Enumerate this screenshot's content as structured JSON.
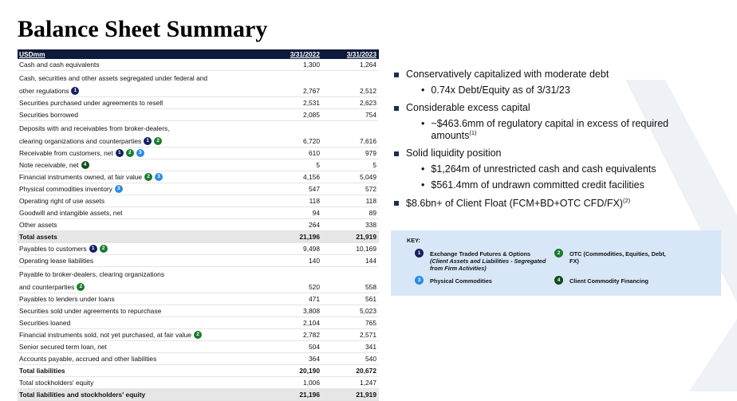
{
  "title": "Balance Sheet Summary",
  "table": {
    "header": [
      "USDmm",
      "3/31/2022",
      "3/31/2023"
    ],
    "rows": [
      {
        "label": [
          "Cash and cash equivalents"
        ],
        "values": [
          "1,300",
          "1,264"
        ]
      },
      {
        "label": [
          "Cash, securities and other assets segregated under federal and",
          "other regulations"
        ],
        "badges": [
          "1"
        ],
        "values": [
          "2,767",
          "2,512"
        ]
      },
      {
        "label": [
          "Securities purchased under agreements to resell"
        ],
        "values": [
          "2,531",
          "2,623"
        ]
      },
      {
        "label": [
          "Securities borrowed"
        ],
        "values": [
          "2,085",
          "754"
        ]
      },
      {
        "label": [
          "Deposits with and receivables from broker-dealers,",
          "clearing organizations and counterparties"
        ],
        "badges": [
          "1",
          "2"
        ],
        "values": [
          "6,720",
          "7,616"
        ]
      },
      {
        "label": [
          "Receivable from customers, net"
        ],
        "badges": [
          "1",
          "2",
          "3"
        ],
        "values": [
          "610",
          "979"
        ]
      },
      {
        "label": [
          "Note receivable, net"
        ],
        "badges": [
          "4"
        ],
        "values": [
          "5",
          "5"
        ]
      },
      {
        "label": [
          "Financial instruments owned, at fair value"
        ],
        "badges": [
          "2",
          "3"
        ],
        "values": [
          "4,156",
          "5,049"
        ]
      },
      {
        "label": [
          "Physical commodities inventory"
        ],
        "badges": [
          "3"
        ],
        "values": [
          "547",
          "572"
        ]
      },
      {
        "label": [
          "Operating right of use assets"
        ],
        "values": [
          "118",
          "118"
        ]
      },
      {
        "label": [
          "Goodwill and intangible assets, net"
        ],
        "values": [
          "94",
          "89"
        ]
      },
      {
        "label": [
          "Other assets"
        ],
        "values": [
          "264",
          "338"
        ]
      },
      {
        "label": [
          "Total assets"
        ],
        "values": [
          "21,196",
          "21,919"
        ],
        "style": "total-shaded"
      },
      {
        "label": [
          "Payables to customers"
        ],
        "badges": [
          "1",
          "2"
        ],
        "values": [
          "9,498",
          "10,169"
        ]
      },
      {
        "label": [
          "Operating lease liabilities"
        ],
        "values": [
          "140",
          "144"
        ]
      },
      {
        "label": [
          "Payable to broker-dealers, clearing organizations",
          "and counterparties"
        ],
        "badges": [
          "2"
        ],
        "values": [
          "520",
          "558"
        ]
      },
      {
        "label": [
          "Payables to lenders under loans"
        ],
        "values": [
          "471",
          "561"
        ]
      },
      {
        "label": [
          "Securities sold under agreements to repurchase"
        ],
        "values": [
          "3,808",
          "5,023"
        ]
      },
      {
        "label": [
          "Securities loaned"
        ],
        "values": [
          "2,104",
          "765"
        ]
      },
      {
        "label": [
          "Financial instruments sold, not yet purchased, at fair value"
        ],
        "badges": [
          "2"
        ],
        "values": [
          "2,782",
          "2,571"
        ]
      },
      {
        "label": [
          "Senior secured term loan, net"
        ],
        "values": [
          "504",
          "341"
        ]
      },
      {
        "label": [
          "Accounts payable, accrued and other liabilities"
        ],
        "values": [
          "364",
          "540"
        ]
      },
      {
        "label": [
          "Total liabilities"
        ],
        "values": [
          "20,190",
          "20,672"
        ],
        "style": "total"
      },
      {
        "label": [
          "Total stockholders' equity"
        ],
        "values": [
          "1,006",
          "1,247"
        ]
      },
      {
        "label": [
          "Total liabilities and stockholders' equity"
        ],
        "values": [
          "21,196",
          "21,919"
        ],
        "style": "total-shaded"
      }
    ]
  },
  "bullets": [
    {
      "text": "Conservatively capitalized with moderate debt",
      "sub": [
        {
          "text": "0.74x Debt/Equity as of 3/31/23"
        }
      ]
    },
    {
      "text": "Considerable excess capital",
      "sub": [
        {
          "text": "~$463.6mm of regulatory capital in excess of required amounts",
          "sup": "(1)"
        }
      ]
    },
    {
      "text": "Solid liquidity position",
      "sub": [
        {
          "text": "$1,264m of unrestricted cash and cash equivalents"
        },
        {
          "text": "$561.4mm of undrawn committed credit facilities"
        }
      ]
    },
    {
      "text": "$8.6bn+ of Client Float (FCM+BD+OTC CFD/FX)",
      "sup": "(2)"
    }
  ],
  "key": {
    "title": "KEY:",
    "items": [
      {
        "badge": "1",
        "text": "Exchange Traded Futures & Options",
        "note": "(Client Assets and Liabilities - Segregated from Firm Activities)"
      },
      {
        "badge": "2",
        "text": "OTC (Commodities, Equities, Debt, FX)"
      },
      {
        "badge": "3",
        "text": "Physical Commodities"
      },
      {
        "badge": "4",
        "text": "Client Commodity Financing"
      }
    ]
  }
}
